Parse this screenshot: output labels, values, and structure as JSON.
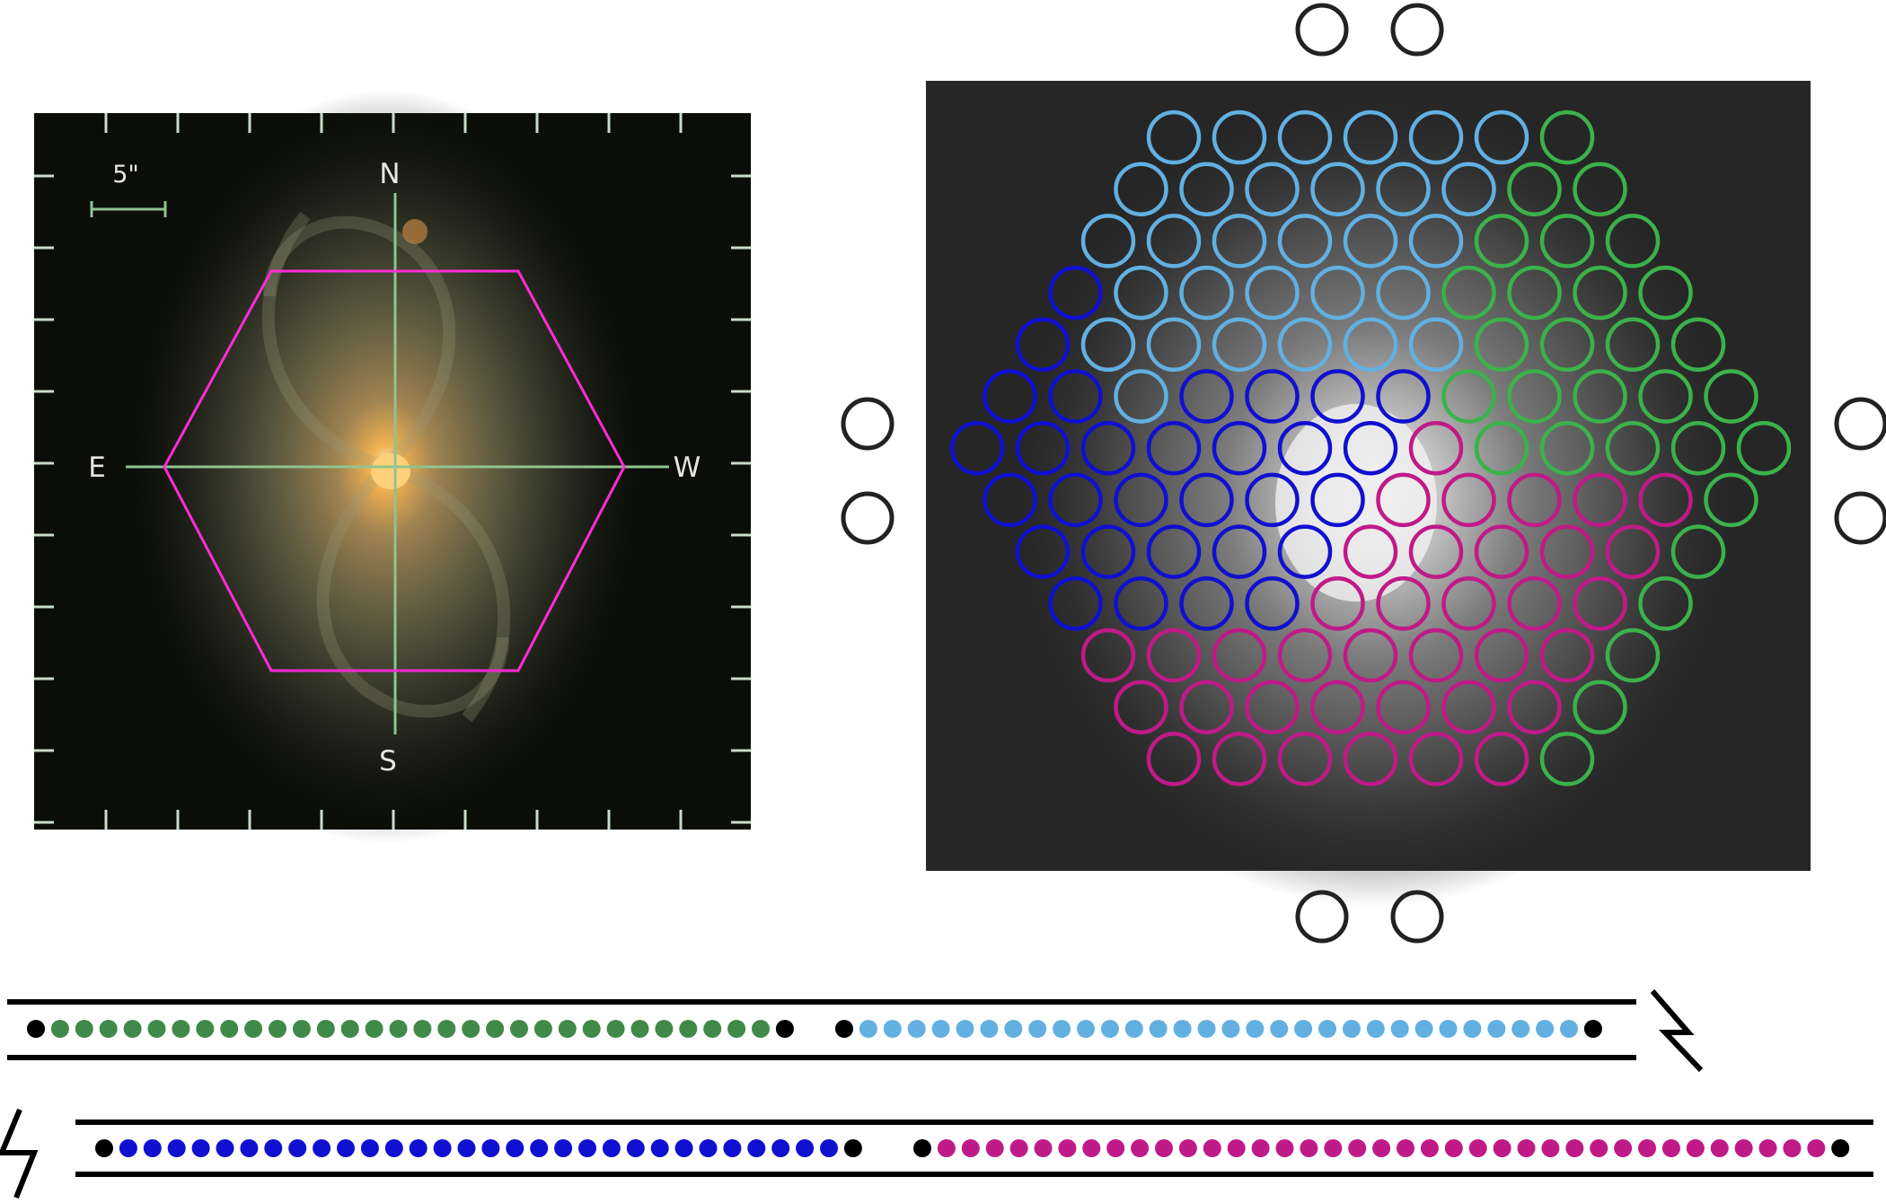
{
  "galaxy_panel": {
    "scale_label": "5\"",
    "compass": {
      "north": "N",
      "south": "S",
      "east": "E",
      "west": "W"
    },
    "colors": {
      "background": "#0b0d08",
      "crosshair": "#8fc48f",
      "hexagon": "#ff2bd6",
      "tick": "#c9dcc9"
    }
  },
  "bundle_panel": {
    "fiber_colors": {
      "light-blue": "#62b0e2",
      "green": "#3bb24a",
      "blue": "#1010d0",
      "magenta": "#c01a88"
    },
    "row_lengths": [
      7,
      8,
      9,
      10,
      11,
      12,
      13,
      12,
      11,
      10,
      9,
      8,
      7
    ],
    "fiber_groups": [
      [
        "L",
        "L",
        "L",
        "L",
        "L",
        "L",
        "G"
      ],
      [
        "L",
        "L",
        "L",
        "L",
        "L",
        "L",
        "G",
        "G"
      ],
      [
        "L",
        "L",
        "L",
        "L",
        "L",
        "L",
        "G",
        "G",
        "G"
      ],
      [
        "B",
        "L",
        "L",
        "L",
        "L",
        "L",
        "G",
        "G",
        "G",
        "G"
      ],
      [
        "B",
        "L",
        "L",
        "L",
        "L",
        "L",
        "L",
        "G",
        "G",
        "G",
        "G"
      ],
      [
        "B",
        "B",
        "L",
        "B",
        "B",
        "B",
        "B",
        "G",
        "G",
        "G",
        "G",
        "G"
      ],
      [
        "B",
        "B",
        "B",
        "B",
        "B",
        "B",
        "B",
        "M",
        "G",
        "G",
        "G",
        "G",
        "G"
      ],
      [
        "B",
        "B",
        "B",
        "B",
        "B",
        "B",
        "M",
        "M",
        "M",
        "M",
        "M",
        "G"
      ],
      [
        "B",
        "B",
        "B",
        "B",
        "B",
        "M",
        "M",
        "M",
        "M",
        "M",
        "G"
      ],
      [
        "B",
        "B",
        "B",
        "B",
        "M",
        "M",
        "M",
        "M",
        "M",
        "G"
      ],
      [
        "M",
        "M",
        "M",
        "M",
        "M",
        "M",
        "M",
        "M",
        "G"
      ],
      [
        "M",
        "M",
        "M",
        "M",
        "M",
        "M",
        "M",
        "G"
      ],
      [
        "M",
        "M",
        "M",
        "M",
        "M",
        "M",
        "G"
      ]
    ],
    "sky_fiber_color": "#222222"
  },
  "slit_layout": {
    "rows": [
      {
        "segments": [
          {
            "color": "#3f8a48",
            "count": 30
          },
          {
            "color": "#62b0e2",
            "count": 30
          }
        ]
      },
      {
        "segments": [
          {
            "color": "#1010d0",
            "count": 30
          },
          {
            "color": "#c01a88",
            "count": 37
          }
        ]
      }
    ],
    "end_dot_color": "#000000",
    "line_color": "#000000"
  }
}
